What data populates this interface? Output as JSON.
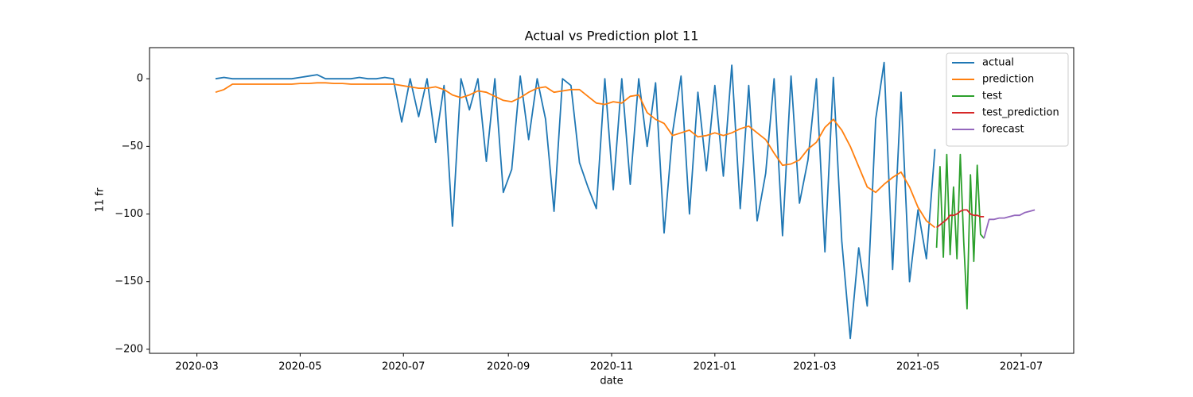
{
  "chart_data": {
    "type": "line",
    "title": "Actual vs Prediction plot 11",
    "xlabel": "date",
    "ylabel": "11 fr",
    "xlim": [
      "2020-02-02",
      "2021-08-01"
    ],
    "xticks": [
      {
        "value": "2020-03-01",
        "label": "2020-03"
      },
      {
        "value": "2020-05-01",
        "label": "2020-05"
      },
      {
        "value": "2020-07-01",
        "label": "2020-07"
      },
      {
        "value": "2020-09-01",
        "label": "2020-09"
      },
      {
        "value": "2020-11-01",
        "label": "2020-11"
      },
      {
        "value": "2021-01-01",
        "label": "2021-01"
      },
      {
        "value": "2021-03-01",
        "label": "2021-03"
      },
      {
        "value": "2021-05-01",
        "label": "2021-05"
      },
      {
        "value": "2021-07-01",
        "label": "2021-07"
      }
    ],
    "ylim": [
      -203,
      23
    ],
    "yticks": [
      0,
      {
        "value": -50,
        "label": "−50"
      },
      {
        "value": -100,
        "label": "−100"
      },
      {
        "value": -150,
        "label": "−150"
      },
      {
        "value": -200,
        "label": "−200"
      }
    ],
    "legend": "upper right",
    "series": [
      {
        "name": "actual",
        "color": "#1f77b4",
        "x": [
          "2020-03-12",
          "2020-03-17",
          "2020-03-22",
          "2020-03-27",
          "2020-04-01",
          "2020-04-06",
          "2020-04-11",
          "2020-04-16",
          "2020-04-21",
          "2020-04-26",
          "2020-05-01",
          "2020-05-06",
          "2020-05-11",
          "2020-05-16",
          "2020-05-21",
          "2020-05-26",
          "2020-05-31",
          "2020-06-05",
          "2020-06-10",
          "2020-06-15",
          "2020-06-20",
          "2020-06-25",
          "2020-06-30",
          "2020-07-05",
          "2020-07-10",
          "2020-07-15",
          "2020-07-20",
          "2020-07-25",
          "2020-07-30",
          "2020-08-04",
          "2020-08-09",
          "2020-08-14",
          "2020-08-19",
          "2020-08-24",
          "2020-08-29",
          "2020-09-03",
          "2020-09-08",
          "2020-09-13",
          "2020-09-18",
          "2020-09-23",
          "2020-09-28",
          "2020-10-03",
          "2020-10-08",
          "2020-10-13",
          "2020-10-18",
          "2020-10-23",
          "2020-10-28",
          "2020-11-02",
          "2020-11-07",
          "2020-11-12",
          "2020-11-17",
          "2020-11-22",
          "2020-11-27",
          "2020-12-02",
          "2020-12-07",
          "2020-12-12",
          "2020-12-17",
          "2020-12-22",
          "2020-12-27",
          "2021-01-01",
          "2021-01-06",
          "2021-01-11",
          "2021-01-16",
          "2021-01-21",
          "2021-01-26",
          "2021-01-31",
          "2021-02-05",
          "2021-02-10",
          "2021-02-15",
          "2021-02-20",
          "2021-02-25",
          "2021-03-02",
          "2021-03-07",
          "2021-03-12",
          "2021-03-17",
          "2021-03-22",
          "2021-03-27",
          "2021-04-01",
          "2021-04-06",
          "2021-04-11",
          "2021-04-16",
          "2021-04-21",
          "2021-04-26",
          "2021-05-01",
          "2021-05-06",
          "2021-05-11"
        ],
        "values": [
          0,
          1,
          0,
          0,
          0,
          0,
          0,
          0,
          0,
          0,
          1,
          2,
          3,
          0,
          0,
          0,
          0,
          1,
          0,
          0,
          1,
          0,
          -32,
          0,
          -28,
          0,
          -47,
          -5,
          -109,
          0,
          -23,
          0,
          -61,
          0,
          -84,
          -67,
          2,
          -45,
          0,
          -30,
          -98,
          0,
          -5,
          -62,
          -80,
          -96,
          0,
          -82,
          0,
          -78,
          0,
          -50,
          -3,
          -114,
          -40,
          2,
          -100,
          -10,
          -68,
          -5,
          -72,
          10,
          -96,
          -5,
          -105,
          -70,
          0,
          -116,
          2,
          -92,
          -60,
          0,
          -128,
          1,
          -120,
          -192,
          -125,
          -168,
          -30,
          12,
          -141,
          -10,
          -150,
          -97,
          -133,
          -52
        ]
      },
      {
        "name": "prediction",
        "color": "#ff7f0e",
        "x": [
          "2020-03-12",
          "2020-03-17",
          "2020-03-22",
          "2020-03-27",
          "2020-04-01",
          "2020-04-06",
          "2020-04-11",
          "2020-04-16",
          "2020-04-21",
          "2020-04-26",
          "2020-05-01",
          "2020-05-06",
          "2020-05-11",
          "2020-05-16",
          "2020-05-21",
          "2020-05-26",
          "2020-05-31",
          "2020-06-05",
          "2020-06-10",
          "2020-06-15",
          "2020-06-20",
          "2020-06-25",
          "2020-06-30",
          "2020-07-05",
          "2020-07-10",
          "2020-07-15",
          "2020-07-20",
          "2020-07-25",
          "2020-07-30",
          "2020-08-04",
          "2020-08-09",
          "2020-08-14",
          "2020-08-19",
          "2020-08-24",
          "2020-08-29",
          "2020-09-03",
          "2020-09-08",
          "2020-09-13",
          "2020-09-18",
          "2020-09-23",
          "2020-09-28",
          "2020-10-03",
          "2020-10-08",
          "2020-10-13",
          "2020-10-18",
          "2020-10-23",
          "2020-10-28",
          "2020-11-02",
          "2020-11-07",
          "2020-11-12",
          "2020-11-17",
          "2020-11-22",
          "2020-11-27",
          "2020-12-02",
          "2020-12-07",
          "2020-12-12",
          "2020-12-17",
          "2020-12-22",
          "2020-12-27",
          "2021-01-01",
          "2021-01-06",
          "2021-01-11",
          "2021-01-16",
          "2021-01-21",
          "2021-01-26",
          "2021-01-31",
          "2021-02-05",
          "2021-02-10",
          "2021-02-15",
          "2021-02-20",
          "2021-02-25",
          "2021-03-02",
          "2021-03-07",
          "2021-03-12",
          "2021-03-17",
          "2021-03-22",
          "2021-03-27",
          "2021-04-01",
          "2021-04-06",
          "2021-04-11",
          "2021-04-16",
          "2021-04-21",
          "2021-04-26",
          "2021-05-01",
          "2021-05-06",
          "2021-05-11"
        ],
        "values": [
          -10,
          -8,
          -4,
          -4,
          -4,
          -4,
          -4,
          -4,
          -4,
          -4,
          -3.5,
          -3.5,
          -3,
          -3,
          -3.5,
          -3.5,
          -4,
          -4,
          -4,
          -4,
          -4,
          -4,
          -5,
          -6,
          -7,
          -7,
          -6,
          -8,
          -12,
          -14,
          -12,
          -9,
          -10,
          -13,
          -16,
          -17,
          -14,
          -10,
          -7,
          -6,
          -10,
          -9,
          -8,
          -8,
          -13,
          -18,
          -19,
          -17,
          -18,
          -13,
          -12,
          -25,
          -30,
          -33,
          -42,
          -40,
          -38,
          -43,
          -42,
          -40,
          -42,
          -40,
          -37,
          -35,
          -40,
          -45,
          -55,
          -64,
          -63,
          -60,
          -52,
          -47,
          -36,
          -30,
          -38,
          -50,
          -65,
          -80,
          -84,
          -78,
          -73,
          -69,
          -80,
          -95,
          -105,
          -110
        ]
      },
      {
        "name": "test",
        "color": "#2ca02c",
        "x": [
          "2021-05-12",
          "2021-05-14",
          "2021-05-16",
          "2021-05-18",
          "2021-05-20",
          "2021-05-22",
          "2021-05-24",
          "2021-05-26",
          "2021-05-28",
          "2021-05-30",
          "2021-06-01",
          "2021-06-03",
          "2021-06-05",
          "2021-06-07",
          "2021-06-09"
        ],
        "values": [
          -125,
          -65,
          -132,
          -56,
          -130,
          -80,
          -133,
          -56,
          -120,
          -170,
          -71,
          -135,
          -64,
          -115,
          -118
        ]
      },
      {
        "name": "test_prediction",
        "color": "#d62728",
        "x": [
          "2021-05-12",
          "2021-05-14",
          "2021-05-16",
          "2021-05-18",
          "2021-05-20",
          "2021-05-22",
          "2021-05-24",
          "2021-05-26",
          "2021-05-28",
          "2021-05-30",
          "2021-06-01",
          "2021-06-03",
          "2021-06-05",
          "2021-06-07",
          "2021-06-09"
        ],
        "values": [
          -110,
          -108,
          -106,
          -104,
          -101,
          -101,
          -100,
          -98,
          -97,
          -97,
          -100,
          -101,
          -101,
          -102,
          -102
        ]
      },
      {
        "name": "forecast",
        "color": "#9467bd",
        "x": [
          "2021-06-09",
          "2021-06-12",
          "2021-06-15",
          "2021-06-18",
          "2021-06-21",
          "2021-06-24",
          "2021-06-27",
          "2021-06-30",
          "2021-07-03",
          "2021-07-06",
          "2021-07-09"
        ],
        "values": [
          -118,
          -104,
          -104,
          -103,
          -103,
          -102,
          -101,
          -101,
          -99,
          -98,
          -97
        ]
      }
    ]
  }
}
